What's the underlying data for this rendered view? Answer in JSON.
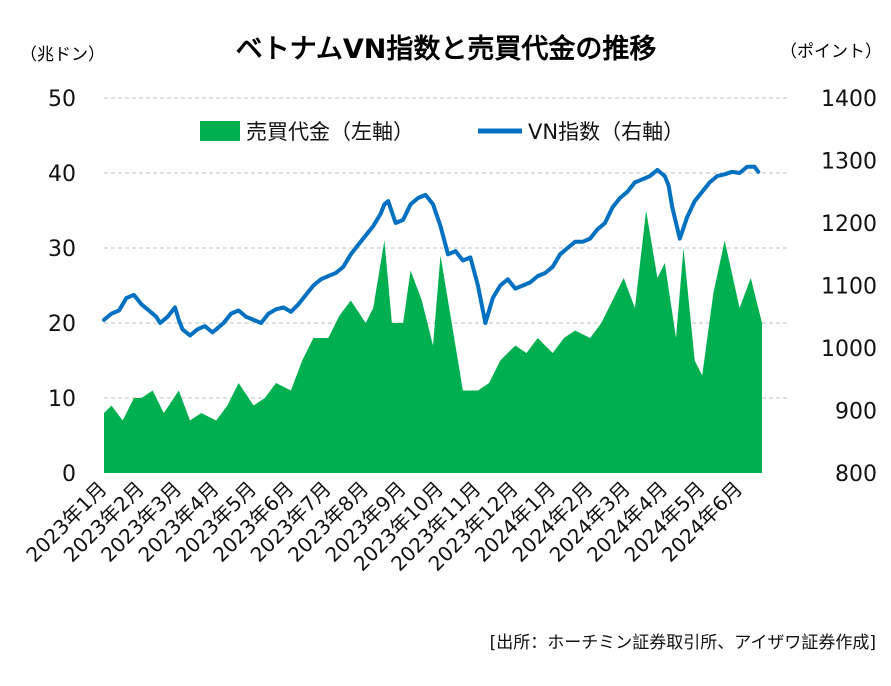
{
  "chart_data": {
    "type": "area+line",
    "title": "ベトナムVN指数と売買代金の推移",
    "left_axis_unit": "（兆ドン）",
    "right_axis_unit": "（ポイント）",
    "left_ylim": [
      0,
      50
    ],
    "left_ticks": [
      "0",
      "10",
      "20",
      "30",
      "40",
      "50"
    ],
    "right_ylim": [
      800,
      1400
    ],
    "right_ticks": [
      "800",
      "900",
      "1000",
      "1100",
      "1200",
      "1300",
      "1400"
    ],
    "categories": [
      "2023年1月",
      "2023年2月",
      "2023年3月",
      "2023年4月",
      "2023年5月",
      "2023年6月",
      "2023年7月",
      "2023年8月",
      "2023年9月",
      "2023年10月",
      "2023年11月",
      "2023年12月",
      "2024年1月",
      "2024年2月",
      "2024年3月",
      "2024年4月",
      "2024年5月",
      "2024年6月"
    ],
    "grid": true,
    "legend_position": "top-left-inside",
    "series": [
      {
        "name": "売買代金（左軸）",
        "type": "area",
        "axis": "left",
        "color": "#00b050",
        "x": [
          0,
          0.2,
          0.5,
          0.8,
          1.0,
          1.3,
          1.6,
          2.0,
          2.3,
          2.6,
          3.0,
          3.3,
          3.6,
          4.0,
          4.3,
          4.6,
          5.0,
          5.3,
          5.6,
          6.0,
          6.3,
          6.6,
          7.0,
          7.2,
          7.5,
          7.7,
          8.0,
          8.2,
          8.5,
          8.8,
          9.0,
          9.3,
          9.6,
          10.0,
          10.3,
          10.6,
          11.0,
          11.3,
          11.6,
          12.0,
          12.3,
          12.6,
          13.0,
          13.3,
          13.6,
          13.9,
          14.2,
          14.5,
          14.8,
          15.0,
          15.3,
          15.5,
          15.8,
          16.0,
          16.3,
          16.6,
          17.0,
          17.3,
          17.6
        ],
        "values": [
          8,
          9,
          7,
          10,
          10,
          11,
          8,
          11,
          7,
          8,
          7,
          9,
          12,
          9,
          10,
          12,
          11,
          15,
          18,
          18,
          21,
          23,
          20,
          22,
          31,
          20,
          20,
          27,
          23,
          17,
          29,
          20,
          11,
          11,
          12,
          15,
          17,
          16,
          18,
          16,
          18,
          19,
          18,
          20,
          23,
          26,
          22,
          35,
          26,
          28,
          18,
          30,
          15,
          13,
          24,
          31,
          22,
          26,
          20
        ]
      },
      {
        "name": "VN指数（右軸）",
        "type": "line",
        "axis": "right",
        "color": "#0070c0",
        "x": [
          0,
          0.2,
          0.4,
          0.5,
          0.6,
          0.8,
          1.0,
          1.2,
          1.4,
          1.5,
          1.7,
          1.9,
          2.0,
          2.1,
          2.3,
          2.5,
          2.7,
          2.9,
          3.0,
          3.2,
          3.4,
          3.6,
          3.8,
          4.0,
          4.2,
          4.4,
          4.6,
          4.8,
          5.0,
          5.2,
          5.4,
          5.6,
          5.8,
          6.0,
          6.2,
          6.4,
          6.6,
          6.8,
          7.0,
          7.2,
          7.4,
          7.5,
          7.6,
          7.8,
          8.0,
          8.2,
          8.4,
          8.6,
          8.8,
          9.0,
          9.2,
          9.4,
          9.6,
          9.8,
          10.0,
          10.2,
          10.4,
          10.6,
          10.8,
          11.0,
          11.2,
          11.4,
          11.6,
          11.8,
          12.0,
          12.2,
          12.4,
          12.6,
          12.8,
          13.0,
          13.2,
          13.4,
          13.6,
          13.8,
          14.0,
          14.2,
          14.4,
          14.6,
          14.8,
          15.0,
          15.1,
          15.2,
          15.4,
          15.6,
          15.8,
          16.0,
          16.2,
          16.4,
          16.6,
          16.8,
          17.0,
          17.2,
          17.4,
          17.5
        ],
        "values": [
          1045,
          1055,
          1060,
          1070,
          1080,
          1085,
          1070,
          1060,
          1050,
          1040,
          1050,
          1065,
          1045,
          1030,
          1020,
          1030,
          1035,
          1025,
          1030,
          1040,
          1055,
          1060,
          1050,
          1045,
          1040,
          1055,
          1062,
          1065,
          1058,
          1070,
          1085,
          1100,
          1110,
          1115,
          1120,
          1130,
          1150,
          1165,
          1180,
          1195,
          1215,
          1230,
          1235,
          1200,
          1205,
          1230,
          1240,
          1245,
          1230,
          1195,
          1150,
          1155,
          1140,
          1145,
          1100,
          1040,
          1080,
          1100,
          1110,
          1095,
          1100,
          1105,
          1115,
          1120,
          1130,
          1150,
          1160,
          1170,
          1170,
          1175,
          1190,
          1200,
          1225,
          1240,
          1250,
          1265,
          1270,
          1275,
          1285,
          1275,
          1260,
          1225,
          1175,
          1210,
          1235,
          1250,
          1265,
          1275,
          1278,
          1282,
          1280,
          1290,
          1290,
          1282
        ]
      }
    ],
    "source": "[出所：ホーチミン証券取引所、アイザワ証券作成]"
  }
}
